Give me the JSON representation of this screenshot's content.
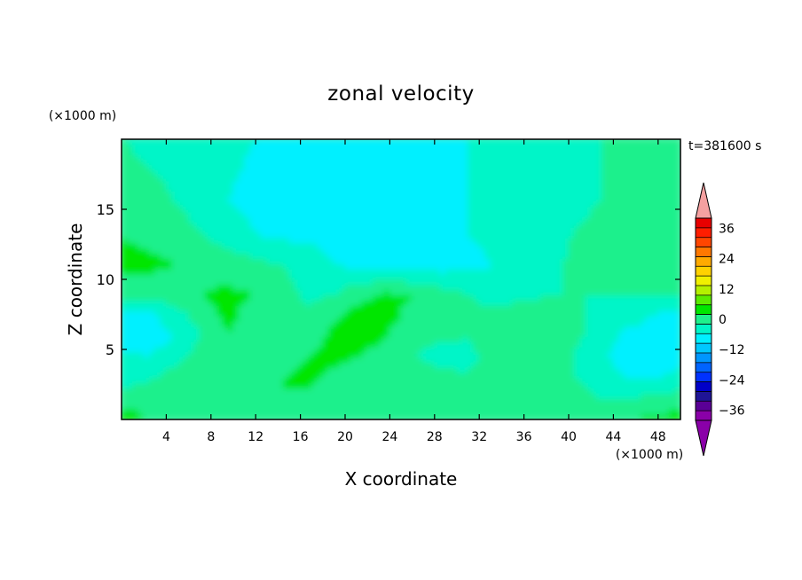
{
  "chart_data": {
    "type": "heatmap",
    "title": "zonal velocity",
    "xlabel": "X coordinate",
    "ylabel": "Z coordinate",
    "x_unit_label": "(×1000 m)",
    "y_unit_label": "(×1000 m)",
    "time_label": "t=381600 s",
    "xlim": [
      0,
      50
    ],
    "ylim": [
      0,
      20
    ],
    "x_ticks": [
      4,
      8,
      12,
      16,
      20,
      24,
      28,
      32,
      36,
      40,
      44,
      48
    ],
    "y_ticks": [
      5,
      10,
      15
    ],
    "grid": false,
    "colorbar": {
      "placement": "right",
      "levels": [
        -40,
        -36,
        -32,
        -28,
        -24,
        -20,
        -16,
        -12,
        -8,
        -4,
        0,
        4,
        8,
        12,
        16,
        20,
        24,
        28,
        32,
        36,
        40
      ],
      "colors": [
        "#8a00a8",
        "#5a0096",
        "#1f1496",
        "#0000c8",
        "#0032ff",
        "#0064ff",
        "#0096ff",
        "#00c8ff",
        "#00f0ff",
        "#00f5c8",
        "#1ef08c",
        "#00e600",
        "#5aeb00",
        "#b4f000",
        "#f0f000",
        "#ffd200",
        "#ffaa00",
        "#ff7800",
        "#ff4600",
        "#ff1e00",
        "#e80000"
      ],
      "under_color": "#8a00a8",
      "over_color": "#f4a0a0",
      "tick_labels": [
        "36",
        "24",
        "12",
        "0",
        "−12",
        "−24",
        "−36"
      ],
      "tick_values": [
        36,
        24,
        12,
        0,
        -12,
        -24,
        -36
      ]
    },
    "z_rows": [
      [
        0,
        -1,
        -1,
        -2,
        -3,
        -4,
        -5,
        -7,
        -8,
        -8,
        -8,
        -7,
        -6,
        -4,
        -3,
        -2,
        -1,
        -1,
        0,
        0,
        1,
        2
      ],
      [
        3,
        1,
        0,
        -2,
        -4,
        -5,
        -6,
        -7,
        -7,
        -8,
        -8,
        -7,
        -6,
        -4,
        -3,
        -2,
        -1,
        -1,
        0,
        1,
        2,
        3
      ],
      [
        4,
        3,
        2,
        0,
        -2,
        -4,
        -5,
        -5,
        -5,
        -5,
        -6,
        -6,
        -5,
        -4,
        -3,
        -2,
        -1,
        0,
        1,
        2,
        3,
        3
      ],
      [
        5,
        5,
        4,
        3,
        2,
        1,
        0,
        -2,
        -4,
        -5,
        -6,
        -6,
        -6,
        -5,
        -4,
        -3,
        -2,
        1,
        2,
        2,
        2,
        2
      ],
      [
        2,
        2,
        2,
        4,
        5,
        4,
        2,
        -1,
        0,
        3,
        5,
        4,
        2,
        0,
        -2,
        -1,
        0,
        0,
        0,
        0,
        0,
        0
      ],
      [
        -6,
        -5,
        -2,
        2,
        5,
        2,
        1,
        1,
        3,
        6,
        5,
        3,
        3,
        2,
        1,
        2,
        2,
        1,
        -1,
        -2,
        -4,
        -6
      ],
      [
        -6,
        -6,
        -4,
        0,
        4,
        3,
        0,
        2,
        5,
        6,
        4,
        2,
        1,
        0,
        2,
        3,
        2,
        1,
        -2,
        -5,
        -6,
        -6
      ],
      [
        -3,
        -4,
        -2,
        2,
        4,
        2,
        1,
        4,
        5,
        4,
        2,
        0,
        -2,
        -1,
        1,
        2,
        2,
        0,
        -3,
        -6,
        -7,
        -5
      ],
      [
        -2,
        -1,
        2,
        4,
        4,
        3,
        4,
        5,
        3,
        2,
        2,
        3,
        2,
        0,
        4,
        3,
        1,
        0,
        -2,
        -4,
        -4,
        -3
      ],
      [
        2,
        3,
        4,
        4,
        3,
        3,
        4,
        3,
        3,
        3,
        3,
        1,
        2,
        2,
        3,
        3,
        2,
        2,
        0,
        0,
        1,
        2
      ],
      [
        6,
        4,
        3,
        2,
        0,
        0,
        0,
        1,
        2,
        3,
        3,
        1,
        0,
        0,
        0,
        0,
        1,
        2,
        3,
        4,
        5,
        6
      ]
    ],
    "z_row_heights_top_down": [
      20,
      15.6,
      13.3,
      11.1,
      8.9,
      7.5,
      6,
      4.5,
      3,
      1.5,
      0
    ]
  }
}
